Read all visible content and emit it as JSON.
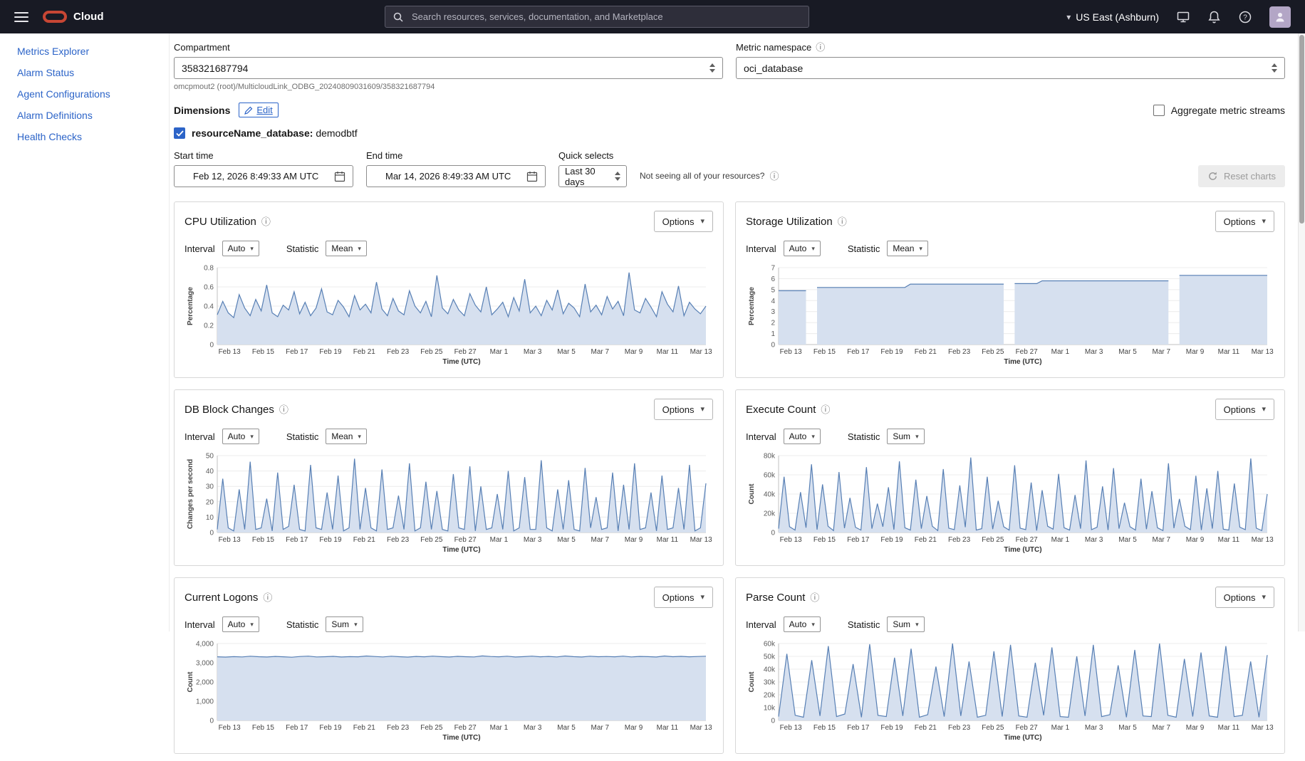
{
  "topbar": {
    "brand": "Cloud",
    "search_placeholder": "Search resources, services, documentation, and Marketplace",
    "region": "US East (Ashburn)"
  },
  "sidebar": {
    "items": [
      {
        "label": "Metrics Explorer"
      },
      {
        "label": "Alarm Status"
      },
      {
        "label": "Agent Configurations"
      },
      {
        "label": "Alarm Definitions"
      },
      {
        "label": "Health Checks"
      }
    ]
  },
  "filters": {
    "compartment_label": "Compartment",
    "compartment_value": "358321687794",
    "compartment_path": "omcpmout2 (root)/MulticloudLink_ODBG_20240809031609/358321687794",
    "namespace_label": "Metric namespace",
    "namespace_value": "oci_database",
    "dimensions_label": "Dimensions",
    "edit_label": "Edit",
    "aggregate_label": "Aggregate metric streams",
    "stream_key": "resourceName_database:",
    "stream_value": "demodbtf",
    "start_label": "Start time",
    "start_value": "Feb 12, 2026 8:49:33 AM UTC",
    "end_label": "End time",
    "end_value": "Mar 14, 2026 8:49:33 AM UTC",
    "quick_label": "Quick selects",
    "quick_value": "Last 30 days",
    "resources_hint": "Not seeing all of your resources?",
    "reset_label": "Reset charts"
  },
  "chart_ui": {
    "options": "Options",
    "interval": "Interval",
    "statistic": "Statistic"
  },
  "icons": {
    "chevron_down": "▾",
    "info": "ⓘ"
  },
  "colors": {
    "link": "#2c64c8",
    "chart_line": "#577fb4",
    "chart_fill": "#d6e0ef",
    "oracle_red": "#c74634",
    "topbar_bg": "#181a24",
    "avatar_bg": "#b3a6c6"
  },
  "chart_axis": {
    "xlabel": "Time (UTC)",
    "x_labels": [
      "Feb 13",
      "Feb 15",
      "Feb 17",
      "Feb 19",
      "Feb 21",
      "Feb 23",
      "Feb 25",
      "Feb 27",
      "Mar 1",
      "Mar 3",
      "Mar 5",
      "Mar 7",
      "Mar 9",
      "Mar 11",
      "Mar 13"
    ]
  },
  "chart_data": [
    {
      "type": "area",
      "title": "CPU Utilization",
      "interval_value": "Auto",
      "statistic_value": "Mean",
      "ylabel": "Percentage",
      "ylim": [
        0,
        0.8
      ],
      "yticks": [
        {
          "v": 0,
          "label": "0"
        },
        {
          "v": 0.2,
          "label": "0.2"
        },
        {
          "v": 0.4,
          "label": "0.4"
        },
        {
          "v": 0.6,
          "label": "0.6"
        },
        {
          "v": 0.8,
          "label": "0.8"
        }
      ],
      "values": [
        0.31,
        0.45,
        0.33,
        0.28,
        0.52,
        0.38,
        0.3,
        0.47,
        0.35,
        0.62,
        0.33,
        0.29,
        0.41,
        0.36,
        0.55,
        0.32,
        0.44,
        0.3,
        0.38,
        0.58,
        0.34,
        0.31,
        0.46,
        0.39,
        0.29,
        0.51,
        0.36,
        0.42,
        0.33,
        0.65,
        0.37,
        0.3,
        0.48,
        0.35,
        0.31,
        0.56,
        0.4,
        0.33,
        0.45,
        0.29,
        0.72,
        0.38,
        0.32,
        0.47,
        0.36,
        0.3,
        0.53,
        0.41,
        0.34,
        0.6,
        0.31,
        0.37,
        0.44,
        0.29,
        0.49,
        0.35,
        0.68,
        0.33,
        0.4,
        0.3,
        0.46,
        0.36,
        0.57,
        0.32,
        0.43,
        0.38,
        0.29,
        0.63,
        0.34,
        0.41,
        0.31,
        0.5,
        0.37,
        0.45,
        0.3,
        0.75,
        0.36,
        0.33,
        0.48,
        0.39,
        0.29,
        0.55,
        0.42,
        0.34,
        0.61,
        0.3,
        0.44,
        0.37,
        0.32,
        0.4
      ]
    },
    {
      "type": "area",
      "title": "Storage Utilization",
      "interval_value": "Auto",
      "statistic_value": "Mean",
      "ylabel": "Percentage",
      "ylim": [
        0,
        7
      ],
      "yticks": [
        {
          "v": 0,
          "label": "0"
        },
        {
          "v": 1,
          "label": "1"
        },
        {
          "v": 2,
          "label": "2"
        },
        {
          "v": 3,
          "label": "3"
        },
        {
          "v": 4,
          "label": "4"
        },
        {
          "v": 5,
          "label": "5"
        },
        {
          "v": 6,
          "label": "6"
        },
        {
          "v": 7,
          "label": "7"
        }
      ],
      "values": [
        4.9,
        4.9,
        4.9,
        4.9,
        4.9,
        4.9,
        null,
        5.2,
        5.2,
        5.2,
        5.2,
        5.2,
        5.2,
        5.2,
        5.2,
        5.2,
        5.2,
        5.2,
        5.2,
        5.2,
        5.2,
        5.2,
        5.2,
        5.2,
        5.5,
        5.5,
        5.5,
        5.5,
        5.5,
        5.5,
        5.5,
        5.5,
        5.5,
        5.5,
        5.5,
        5.5,
        5.5,
        5.5,
        5.5,
        5.5,
        5.5,
        5.5,
        null,
        5.55,
        5.55,
        5.55,
        5.55,
        5.55,
        5.8,
        5.8,
        5.8,
        5.8,
        5.8,
        5.8,
        5.8,
        5.8,
        5.8,
        5.8,
        5.8,
        5.8,
        5.8,
        5.8,
        5.8,
        5.8,
        5.8,
        5.8,
        5.8,
        5.8,
        5.8,
        5.8,
        5.8,
        5.8,
        null,
        6.3,
        6.3,
        6.3,
        6.3,
        6.3,
        6.3,
        6.3,
        6.3,
        6.3,
        6.3,
        6.3,
        6.3,
        6.3,
        6.3,
        6.3,
        6.3,
        6.3
      ]
    },
    {
      "type": "area",
      "title": "DB Block Changes",
      "interval_value": "Auto",
      "statistic_value": "Mean",
      "ylabel": "Changes per second",
      "ylim": [
        0,
        50
      ],
      "yticks": [
        {
          "v": 0,
          "label": "0"
        },
        {
          "v": 10,
          "label": "10"
        },
        {
          "v": 20,
          "label": "20"
        },
        {
          "v": 30,
          "label": "30"
        },
        {
          "v": 40,
          "label": "40"
        },
        {
          "v": 50,
          "label": "50"
        }
      ],
      "values": [
        2,
        35,
        3,
        1,
        28,
        2,
        46,
        2,
        3,
        22,
        1,
        39,
        2,
        4,
        31,
        2,
        1,
        44,
        3,
        2,
        26,
        2,
        37,
        1,
        3,
        48,
        2,
        29,
        3,
        1,
        41,
        2,
        3,
        24,
        2,
        45,
        1,
        3,
        33,
        2,
        27,
        2,
        1,
        38,
        3,
        2,
        43,
        1,
        30,
        2,
        3,
        25,
        2,
        40,
        1,
        3,
        36,
        2,
        2,
        47,
        3,
        1,
        28,
        2,
        34,
        2,
        1,
        42,
        3,
        23,
        2,
        3,
        39,
        1,
        31,
        2,
        45,
        2,
        3,
        26,
        1,
        37,
        2,
        3,
        29,
        2,
        44,
        1,
        3,
        32
      ]
    },
    {
      "type": "area",
      "title": "Execute Count",
      "interval_value": "Auto",
      "statistic_value": "Sum",
      "ylabel": "Count",
      "ylim": [
        0,
        80000
      ],
      "yticks": [
        {
          "v": 0,
          "label": "0"
        },
        {
          "v": 20000,
          "label": "20k"
        },
        {
          "v": 40000,
          "label": "40k"
        },
        {
          "v": 60000,
          "label": "60k"
        },
        {
          "v": 80000,
          "label": "80k"
        }
      ],
      "values": [
        4000,
        58000,
        6000,
        2500,
        42000,
        5000,
        71000,
        3000,
        50000,
        6500,
        2000,
        63000,
        4500,
        36000,
        5500,
        2500,
        68000,
        4000,
        30000,
        6000,
        47000,
        3000,
        74000,
        5000,
        2500,
        55000,
        4000,
        38000,
        6500,
        2000,
        66000,
        4500,
        3000,
        49000,
        5500,
        78000,
        2500,
        4000,
        58000,
        3500,
        33000,
        6000,
        2500,
        70000,
        4500,
        3000,
        52000,
        2000,
        44000,
        6500,
        3500,
        61000,
        5000,
        2500,
        39000,
        4000,
        75000,
        3000,
        5500,
        48000,
        2500,
        67000,
        4000,
        31000,
        6000,
        2500,
        56000,
        3500,
        43000,
        5000,
        2000,
        72000,
        4500,
        35000,
        6500,
        3000,
        59000,
        2500,
        46000,
        4000,
        64000,
        3500,
        2500,
        51000,
        5500,
        3000,
        77000,
        4500,
        2000,
        40000
      ]
    },
    {
      "type": "area",
      "title": "Current Logons",
      "interval_value": "Auto",
      "statistic_value": "Sum",
      "ylabel": "Count",
      "ylim": [
        0,
        4000
      ],
      "yticks": [
        {
          "v": 0,
          "label": "0"
        },
        {
          "v": 1000,
          "label": "1,000"
        },
        {
          "v": 2000,
          "label": "2,000"
        },
        {
          "v": 3000,
          "label": "3,000"
        },
        {
          "v": 4000,
          "label": "4,000"
        }
      ],
      "values": [
        3310,
        3295,
        3320,
        3305,
        3340,
        3315,
        3300,
        3330,
        3310,
        3290,
        3325,
        3345,
        3305,
        3315,
        3335,
        3300,
        3320,
        3310,
        3350,
        3325,
        3305,
        3340,
        3315,
        3295,
        3330,
        3310,
        3345,
        3320,
        3300,
        3335,
        3315,
        3305,
        3355,
        3325,
        3310,
        3340,
        3300,
        3320,
        3345,
        3310,
        3330,
        3305,
        3350,
        3320,
        3300,
        3340,
        3315,
        3325,
        3310,
        3345,
        3305,
        3330,
        3320,
        3300,
        3350,
        3315,
        3335,
        3310,
        3325,
        3340
      ]
    },
    {
      "type": "area",
      "title": "Parse Count",
      "interval_value": "Auto",
      "statistic_value": "Sum",
      "ylabel": "Count",
      "ylim": [
        0,
        60000
      ],
      "yticks": [
        {
          "v": 0,
          "label": "0"
        },
        {
          "v": 10000,
          "label": "10k"
        },
        {
          "v": 20000,
          "label": "20k"
        },
        {
          "v": 30000,
          "label": "30k"
        },
        {
          "v": 40000,
          "label": "40k"
        },
        {
          "v": 50000,
          "label": "50k"
        },
        {
          "v": 60000,
          "label": "60k"
        }
      ],
      "values": [
        3000,
        52000,
        4000,
        2500,
        47000,
        3500,
        58000,
        3000,
        5000,
        44000,
        2500,
        59500,
        4000,
        3000,
        49000,
        3500,
        56000,
        2500,
        4500,
        42000,
        3000,
        60000,
        3500,
        46000,
        2500,
        4000,
        54000,
        3000,
        59000,
        3500,
        2500,
        45000,
        4000,
        57000,
        3000,
        2500,
        50000,
        3500,
        59000,
        3000,
        4500,
        43000,
        2500,
        55000,
        3500,
        3000,
        60000,
        4000,
        2500,
        48000,
        3000,
        53000,
        3500,
        2500,
        58000,
        3000,
        4000,
        46000,
        2500,
        51000
      ]
    }
  ]
}
